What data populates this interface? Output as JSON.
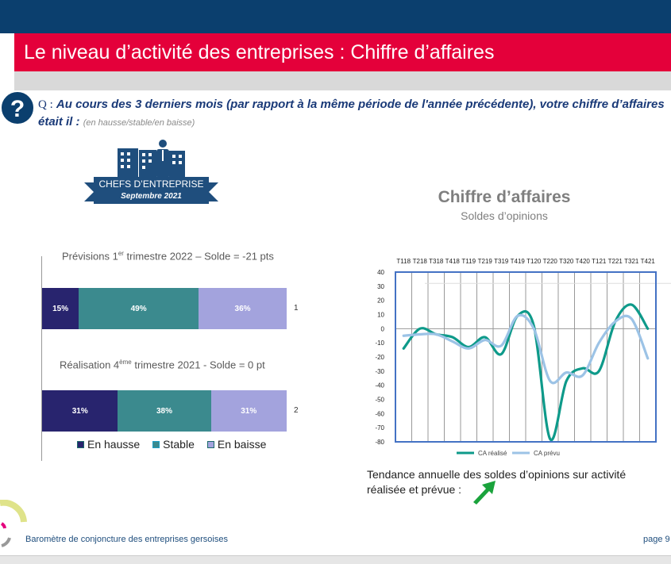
{
  "header": {
    "title": "Le niveau d’activité des entreprises : Chiffre d’affaires"
  },
  "question": {
    "icon": "question-mark-icon",
    "prefix": "Q :",
    "text": "Au cours des 3 derniers mois (par rapport à la même période de l'année précédente),  votre chiffre d’affaires était il :",
    "options": "(en hausse/stable/en baisse)"
  },
  "badge": {
    "line1": "CHEFS D’ENTREPRISE",
    "line2": "Septembre 2021"
  },
  "bars": {
    "rows": [
      {
        "title_pre": "Prévisions  1",
        "title_sup": "er",
        "title_post": "  trimestre 2022 – Solde  = -21 pts",
        "label": "1",
        "values": [
          15,
          49,
          36
        ],
        "texts": [
          "15%",
          "49%",
          "36%"
        ]
      },
      {
        "title_pre": "Réalisation 4",
        "title_sup": "ème",
        "title_post": " trimestre  2021  - Solde = 0  pt",
        "label": "2",
        "values": [
          31,
          38,
          31
        ],
        "texts": [
          "31%",
          "38%",
          "31%"
        ]
      }
    ],
    "legend": [
      "En hausse",
      "Stable",
      "En baisse"
    ],
    "colors": [
      "#28246e",
      "#3b8a8e",
      "#a3a3dd"
    ]
  },
  "chart_data": {
    "type": "line",
    "title": "Chiffre d’affaires",
    "subtitle": "Soldes d’opinions",
    "categories": [
      "T118",
      "T218",
      "T318",
      "T418",
      "T119",
      "T219",
      "T319",
      "T419",
      "T120",
      "T220",
      "T320",
      "T420",
      "T121",
      "T221",
      "T321",
      "T421"
    ],
    "ylim": [
      -80,
      40
    ],
    "yticks": [
      40,
      30,
      20,
      10,
      0,
      -10,
      -20,
      -30,
      -40,
      -50,
      -60,
      -70,
      -80
    ],
    "grid": "vertical",
    "legend_position": "bottom",
    "series": [
      {
        "name": "CA réalisé",
        "color": "#0e9a8a",
        "values": [
          -14,
          0,
          -4,
          -6,
          -13,
          -6,
          -18,
          9,
          2,
          -78,
          -37,
          -28,
          -30,
          5,
          17,
          0
        ]
      },
      {
        "name": "CA prévu",
        "color": "#9cc3e6",
        "values": [
          -5,
          -4,
          -4,
          -9,
          -14,
          -8,
          -12,
          9,
          0,
          -37,
          -31,
          -33,
          -10,
          5,
          7,
          -21
        ]
      }
    ]
  },
  "trend": {
    "text": "Tendance annuelle des soldes d’opinions sur activité réalisée et prévue :",
    "arrow": "up-right-arrow-icon",
    "arrow_color": "#1aa33c"
  },
  "footer": {
    "text": "Baromètre de conjoncture des entreprises gersoises",
    "page": "page 9"
  }
}
